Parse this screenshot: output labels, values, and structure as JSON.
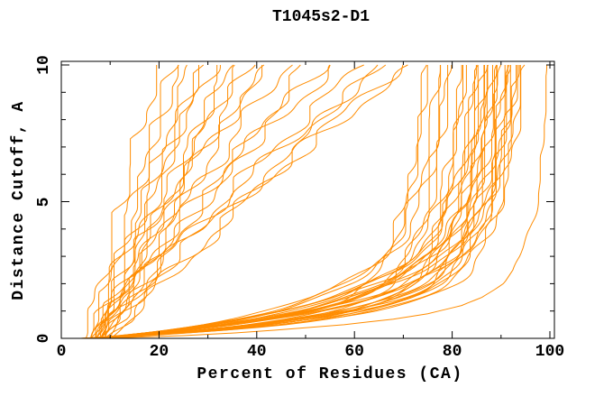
{
  "chart_data": {
    "type": "line",
    "title": "T1045s2-D1",
    "xlabel": "Percent of Residues (CA)",
    "ylabel": "Distance Cutoff, A",
    "xlim": [
      0,
      100
    ],
    "ylim": [
      0,
      10
    ],
    "x_major_ticks": [
      0,
      20,
      40,
      60,
      80,
      100
    ],
    "x_minor_step": 10,
    "y_major_ticks": [
      0,
      5,
      10
    ],
    "y_minor_step": 1,
    "grid": false,
    "legend": "none",
    "line_color": "#ff8c00",
    "frame_color": "#000000",
    "curves": [
      {
        "kind": "lin",
        "x0": 5,
        "xmax": 20,
        "bend": 0.2,
        "seed": 1,
        "amp": 1.3
      },
      {
        "kind": "lin",
        "x0": 7,
        "xmax": 22,
        "bend": -0.1,
        "seed": 2,
        "amp": 1.3
      },
      {
        "kind": "lin",
        "x0": 6,
        "xmax": 24,
        "bend": 0.15,
        "seed": 3,
        "amp": 1.3
      },
      {
        "kind": "lin",
        "x0": 8,
        "xmax": 26,
        "bend": 0.05,
        "seed": 4,
        "amp": 1.3
      },
      {
        "kind": "lin",
        "x0": 7,
        "xmax": 27.5,
        "bend": -0.2,
        "seed": 5,
        "amp": 1.3
      },
      {
        "kind": "lin",
        "x0": 9,
        "xmax": 29,
        "bend": 0.1,
        "seed": 6,
        "amp": 1.3
      },
      {
        "kind": "lin",
        "x0": 6,
        "xmax": 31,
        "bend": 0.25,
        "seed": 7,
        "amp": 1.3
      },
      {
        "kind": "lin",
        "x0": 8,
        "xmax": 33,
        "bend": -0.15,
        "seed": 8,
        "amp": 1.3
      },
      {
        "kind": "lin",
        "x0": 10,
        "xmax": 34.5,
        "bend": 0.2,
        "seed": 9,
        "amp": 1.3
      },
      {
        "kind": "lin",
        "x0": 7,
        "xmax": 36,
        "bend": 0,
        "seed": 10,
        "amp": 1.3
      },
      {
        "kind": "lin",
        "x0": 9,
        "xmax": 38.5,
        "bend": 0.1,
        "seed": 11,
        "amp": 1.3
      },
      {
        "kind": "lin",
        "x0": 8,
        "xmax": 40.5,
        "bend": -0.1,
        "seed": 12,
        "amp": 1.3
      },
      {
        "kind": "lin",
        "x0": 6,
        "xmax": 43,
        "bend": 0.3,
        "seed": 13,
        "amp": 1.5
      },
      {
        "kind": "lin",
        "x0": 8,
        "xmax": 46,
        "bend": 0.1,
        "seed": 14,
        "amp": 1.5
      },
      {
        "kind": "lin",
        "x0": 7,
        "xmax": 49.5,
        "bend": -0.1,
        "seed": 15,
        "amp": 1.5
      },
      {
        "kind": "lin",
        "x0": 9,
        "xmax": 53.5,
        "bend": 0.2,
        "seed": 16,
        "amp": 1.5
      },
      {
        "kind": "lin",
        "x0": 6,
        "xmax": 57,
        "bend": 0.35,
        "seed": 17,
        "amp": 1.5
      },
      {
        "kind": "lin",
        "x0": 8,
        "xmax": 61.5,
        "bend": 0.15,
        "seed": 18,
        "amp": 1.5
      },
      {
        "kind": "lin",
        "x0": 10,
        "xmax": 64,
        "bend": -0.05,
        "seed": 19,
        "amp": 1.5
      },
      {
        "kind": "lin",
        "x0": 7,
        "xmax": 66.5,
        "bend": 0.25,
        "seed": 20,
        "amp": 1.5
      },
      {
        "kind": "lin",
        "x0": 9,
        "xmax": 69.5,
        "bend": 0.1,
        "seed": 21,
        "amp": 1.5
      },
      {
        "kind": "lin",
        "x0": 8,
        "xmax": 73,
        "bend": 0.3,
        "seed": 22,
        "amp": 1.5
      },
      {
        "kind": "sat",
        "x0": 6,
        "xmax": 74.5,
        "t1": 0.7,
        "t2": 3.6,
        "seed": 23,
        "amp": 0.9
      },
      {
        "kind": "sat",
        "x0": 9,
        "xmax": 76,
        "t1": 1.0,
        "t2": 4.8,
        "seed": 24,
        "amp": 0.9
      },
      {
        "kind": "sat",
        "x0": 5,
        "xmax": 78,
        "t1": 0.6,
        "t2": 3.3,
        "seed": 25,
        "amp": 0.9
      },
      {
        "kind": "sat",
        "x0": 8,
        "xmax": 79,
        "t1": 1.2,
        "t2": 5.4,
        "seed": 26,
        "amp": 0.9
      },
      {
        "kind": "sat",
        "x0": 7,
        "xmax": 80,
        "t1": 0.8,
        "t2": 4.0,
        "seed": 27,
        "amp": 0.9
      },
      {
        "kind": "sat",
        "x0": 10,
        "xmax": 81.5,
        "t1": 1.3,
        "t2": 5.8,
        "seed": 28,
        "amp": 0.9
      },
      {
        "kind": "sat",
        "x0": 4,
        "xmax": 82,
        "t1": 0.55,
        "t2": 3.2,
        "seed": 29,
        "amp": 0.9
      },
      {
        "kind": "sat",
        "x0": 8,
        "xmax": 83,
        "t1": 0.9,
        "t2": 4.4,
        "seed": 30,
        "amp": 0.9
      },
      {
        "kind": "sat",
        "x0": 6,
        "xmax": 84.5,
        "t1": 1.1,
        "t2": 5.0,
        "seed": 31,
        "amp": 0.9
      },
      {
        "kind": "sat",
        "x0": 9,
        "xmax": 85.5,
        "t1": 0.7,
        "t2": 3.8,
        "seed": 32,
        "amp": 0.9
      },
      {
        "kind": "sat",
        "x0": 5,
        "xmax": 86.2,
        "t1": 1.0,
        "t2": 4.6,
        "seed": 33,
        "amp": 0.9
      },
      {
        "kind": "sat",
        "x0": 8,
        "xmax": 86.8,
        "t1": 0.6,
        "t2": 3.4,
        "seed": 34,
        "amp": 0.9
      },
      {
        "kind": "sat",
        "x0": 11,
        "xmax": 87.3,
        "t1": 1.25,
        "t2": 5.6,
        "seed": 35,
        "amp": 0.9
      },
      {
        "kind": "sat",
        "x0": 6,
        "xmax": 87.9,
        "t1": 0.85,
        "t2": 4.2,
        "seed": 36,
        "amp": 0.9
      },
      {
        "kind": "sat",
        "x0": 9,
        "xmax": 88.4,
        "t1": 1.05,
        "t2": 5.2,
        "seed": 37,
        "amp": 0.9
      },
      {
        "kind": "sat",
        "x0": 4,
        "xmax": 88.8,
        "t1": 0.65,
        "t2": 3.5,
        "seed": 38,
        "amp": 0.9
      },
      {
        "kind": "sat",
        "x0": 7,
        "xmax": 89.3,
        "t1": 0.95,
        "t2": 4.5,
        "seed": 39,
        "amp": 0.9
      },
      {
        "kind": "sat",
        "x0": 10,
        "xmax": 89.7,
        "t1": 1.35,
        "t2": 5.9,
        "seed": 40,
        "amp": 0.9
      },
      {
        "kind": "sat",
        "x0": 5,
        "xmax": 90.2,
        "t1": 0.75,
        "t2": 3.9,
        "seed": 41,
        "amp": 0.9
      },
      {
        "kind": "sat",
        "x0": 8,
        "xmax": 90.6,
        "t1": 1.15,
        "t2": 5.3,
        "seed": 42,
        "amp": 0.9
      },
      {
        "kind": "sat",
        "x0": 6,
        "xmax": 91,
        "t1": 0.6,
        "t2": 3.3,
        "seed": 43,
        "amp": 0.9
      },
      {
        "kind": "sat",
        "x0": 9,
        "xmax": 91.4,
        "t1": 0.9,
        "t2": 4.7,
        "seed": 44,
        "amp": 0.9
      },
      {
        "kind": "sat",
        "x0": 7,
        "xmax": 91.8,
        "t1": 1.3,
        "t2": 5.7,
        "seed": 45,
        "amp": 0.9
      },
      {
        "kind": "sat",
        "x0": 4,
        "xmax": 92.3,
        "t1": 0.7,
        "t2": 3.6,
        "seed": 46,
        "amp": 0.9
      },
      {
        "kind": "sat",
        "x0": 10,
        "xmax": 92.8,
        "t1": 1.0,
        "t2": 4.9,
        "seed": 47,
        "amp": 0.9
      },
      {
        "kind": "sat",
        "x0": 6,
        "xmax": 93.3,
        "t1": 0.8,
        "t2": 4.1,
        "seed": 48,
        "amp": 0.9
      },
      {
        "kind": "sat",
        "x0": 8,
        "xmax": 93.8,
        "t1": 1.2,
        "t2": 5.5,
        "seed": 49,
        "amp": 0.9
      },
      {
        "kind": "sat",
        "x0": 5,
        "xmax": 94.3,
        "t1": 0.65,
        "t2": 3.4,
        "seed": 50,
        "amp": 0.9
      },
      {
        "kind": "sat",
        "x0": 9,
        "xmax": 94.8,
        "t1": 0.95,
        "t2": 4.6,
        "seed": 51,
        "amp": 0.9
      },
      {
        "kind": "sat",
        "x0": 7,
        "xmax": 95.4,
        "t1": 1.1,
        "t2": 5.1,
        "seed": 52,
        "amp": 0.9
      },
      {
        "kind": "sat",
        "x0": 8,
        "xmax": 96,
        "t1": 0.85,
        "t2": 4.3,
        "seed": 53,
        "amp": 0.9
      },
      {
        "kind": "sat",
        "x0": 6,
        "xmax": 96.6,
        "t1": 1.25,
        "t2": 5.8,
        "seed": 54,
        "amp": 0.9
      },
      {
        "kind": "pts",
        "seed": 55,
        "amp": 0.3,
        "points": [
          [
            0,
            8
          ],
          [
            0.1,
            25
          ],
          [
            0.2,
            36
          ],
          [
            0.3,
            44
          ],
          [
            0.5,
            58
          ],
          [
            0.7,
            68
          ],
          [
            0.9,
            75
          ],
          [
            1.2,
            82
          ],
          [
            1.5,
            86
          ],
          [
            2,
            90
          ],
          [
            2.5,
            92.5
          ],
          [
            3,
            94
          ],
          [
            4,
            96
          ],
          [
            5,
            97.5
          ],
          [
            6,
            98.1
          ],
          [
            7,
            98.5
          ],
          [
            8,
            98.8
          ],
          [
            9,
            99.1
          ],
          [
            10,
            99.4
          ]
        ]
      }
    ]
  }
}
